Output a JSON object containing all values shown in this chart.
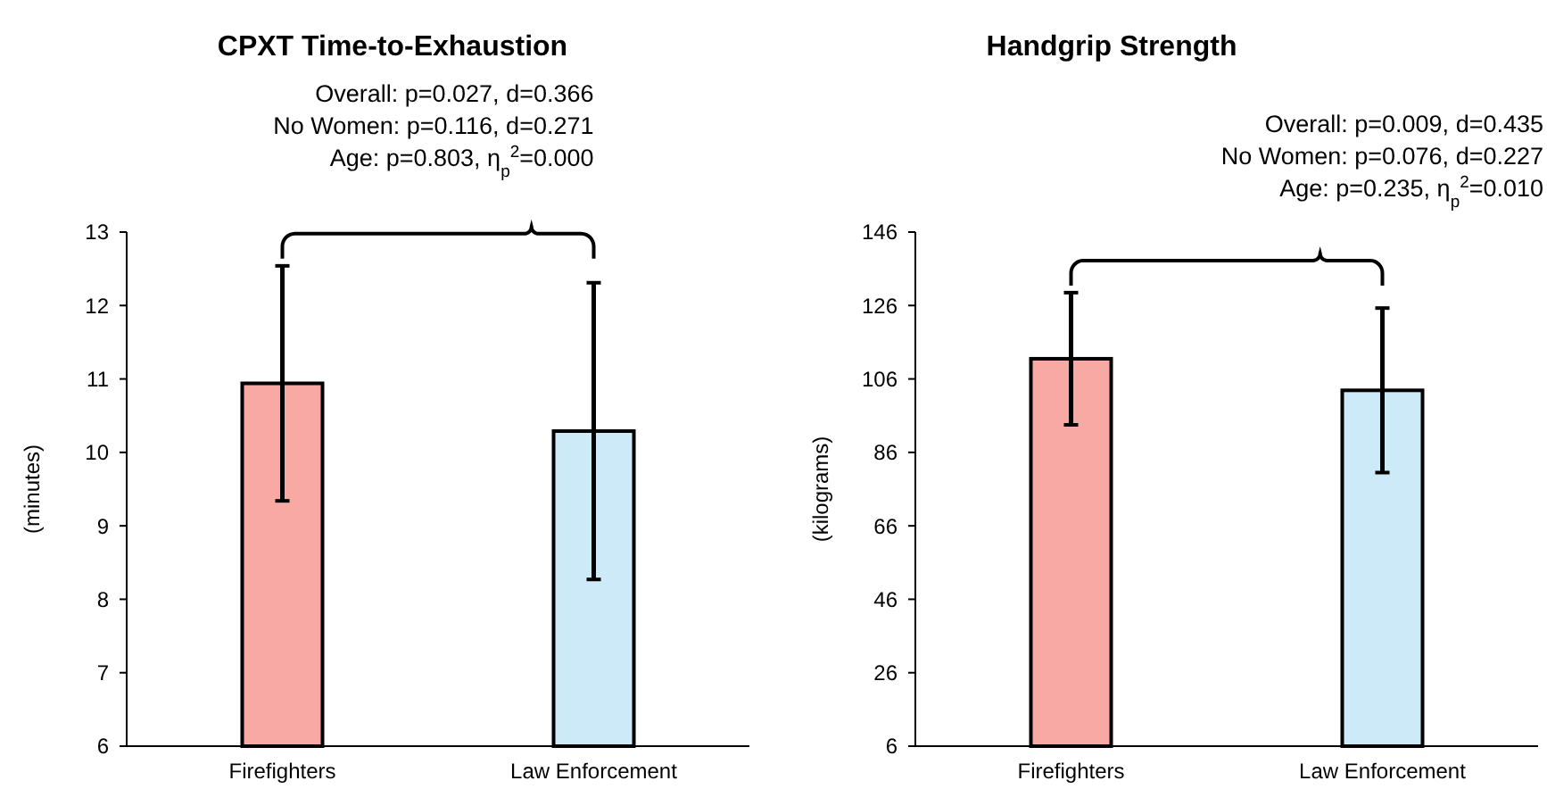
{
  "chart_data": [
    {
      "type": "bar",
      "title": "CPXT Time-to-Exhaustion",
      "ylabel": "(minutes)",
      "categories": [
        "Firefighters",
        "Law Enforcement"
      ],
      "values": [
        10.94,
        10.29
      ],
      "errors": [
        1.6,
        2.02
      ],
      "colors": [
        "#f8a9a3",
        "#cdeaf8"
      ],
      "ylim": [
        6,
        13
      ],
      "yticks": [
        6,
        7,
        8,
        9,
        10,
        11,
        12,
        13
      ],
      "annotations": [
        "Overall: p=0.027, d=0.366",
        "No Women: p=0.116, d=0.271",
        "Age: p=0.803, η$_{p}$$^{2}$=0.000"
      ]
    },
    {
      "type": "bar",
      "title": "Handgrip Strength",
      "ylabel": "(kilograms)",
      "categories": [
        "Firefighters",
        "Law Enforcement"
      ],
      "values": [
        111.5,
        102.9
      ],
      "errors": [
        18,
        22.4
      ],
      "colors": [
        "#f8a9a3",
        "#cdeaf8"
      ],
      "ylim": [
        6,
        146
      ],
      "yticks": [
        6,
        26,
        46,
        66,
        86,
        106,
        126,
        146
      ],
      "annotations": [
        "Overall: p=0.009, d=0.435",
        "No Women: p=0.076, d=0.227",
        "Age: p=0.235, η$_{p}$$^{2}$=0.010"
      ]
    }
  ]
}
